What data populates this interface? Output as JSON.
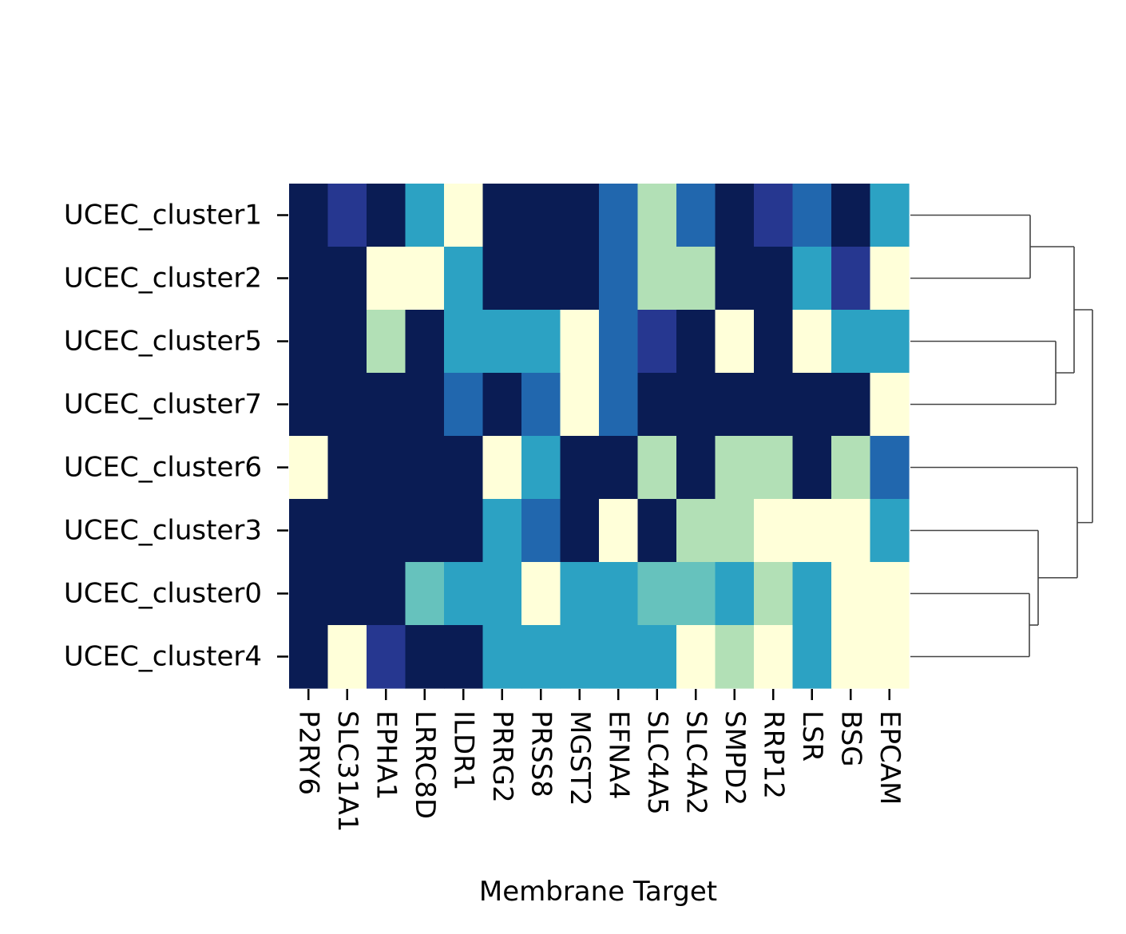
{
  "chart_data": {
    "type": "heatmap",
    "title": "",
    "xlabel": "Membrane Target",
    "ylabel": "",
    "columns": [
      "P2RY6",
      "SLC31A1",
      "EPHA1",
      "LRRC8D",
      "ILDR1",
      "PRRG2",
      "PRSS8",
      "MGST2",
      "EFNA4",
      "SLC4A5",
      "SLC4A2",
      "SMPD2",
      "RRP12",
      "LSR",
      "BSG",
      "EPCAM"
    ],
    "rows": [
      "UCEC_cluster1",
      "UCEC_cluster2",
      "UCEC_cluster5",
      "UCEC_cluster7",
      "UCEC_cluster6",
      "UCEC_cluster3",
      "UCEC_cluster0",
      "UCEC_cluster4"
    ],
    "values": [
      [
        7,
        6,
        7,
        4,
        0,
        7,
        7,
        7,
        5,
        2,
        5,
        7,
        6,
        5,
        7,
        4
      ],
      [
        7,
        7,
        0,
        0,
        4,
        7,
        7,
        7,
        5,
        2,
        2,
        7,
        7,
        4,
        6,
        0
      ],
      [
        7,
        7,
        2,
        7,
        4,
        4,
        4,
        0,
        5,
        6,
        7,
        0,
        7,
        0,
        4,
        4
      ],
      [
        7,
        7,
        7,
        7,
        5,
        7,
        5,
        0,
        5,
        7,
        7,
        7,
        7,
        7,
        7,
        0
      ],
      [
        0,
        7,
        7,
        7,
        7,
        0,
        4,
        7,
        7,
        2,
        7,
        2,
        2,
        7,
        2,
        5
      ],
      [
        7,
        7,
        7,
        7,
        7,
        4,
        5,
        7,
        0,
        7,
        2,
        2,
        0,
        0,
        0,
        4
      ],
      [
        7,
        7,
        7,
        3,
        4,
        4,
        0,
        4,
        4,
        3,
        3,
        4,
        2,
        4,
        0,
        0
      ],
      [
        7,
        0,
        6,
        7,
        7,
        4,
        4,
        4,
        4,
        4,
        0,
        2,
        0,
        4,
        0,
        0
      ]
    ],
    "vmin": 0,
    "vmax": 7,
    "colormap": [
      "#ffffd9",
      "#edf8b1",
      "#b2e0b6",
      "#66c2bd",
      "#2ca2c3",
      "#2167ae",
      "#263790",
      "#0a1c54"
    ],
    "colorbar": false,
    "row_dendrogram": true,
    "row_dendrogram_side": "right"
  }
}
